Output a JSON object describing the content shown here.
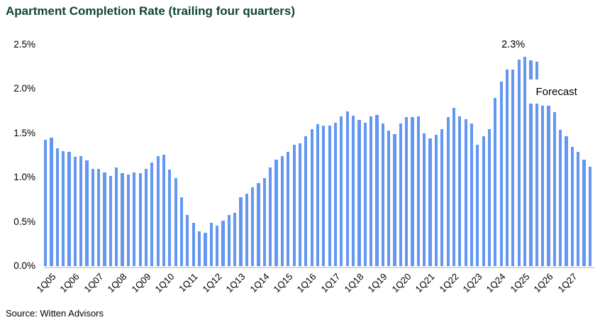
{
  "title": "Apartment Completion Rate (trailing four quarters)",
  "source": "Source: Witten Advisors",
  "colors": {
    "bar": "#6397F2",
    "title": "#0D4437",
    "axis_line": "#D9D9D9",
    "text": "#000000",
    "background": "#FFFFFF"
  },
  "annotations": {
    "peak": {
      "text": "2.3%",
      "bar_index": 80
    },
    "forecast": {
      "text": "Forecast",
      "bar_index": 83
    }
  },
  "chart_data": {
    "type": "bar",
    "title": "Apartment Completion Rate (trailing four quarters)",
    "xlabel": "",
    "ylabel": "",
    "unit": "%",
    "ylim": [
      0,
      2.5
    ],
    "grid": false,
    "legend": false,
    "y_ticks": [
      "0.0%",
      "0.5%",
      "1.0%",
      "1.5%",
      "2.0%",
      "2.5%"
    ],
    "x_tick_labels": [
      "1Q05",
      "1Q06",
      "1Q07",
      "1Q08",
      "1Q09",
      "1Q10",
      "1Q11",
      "1Q12",
      "1Q13",
      "1Q14",
      "1Q15",
      "1Q16",
      "1Q17",
      "1Q18",
      "1Q19",
      "1Q20",
      "1Q21",
      "1Q22",
      "1Q23",
      "1Q24",
      "1Q25",
      "1Q26",
      "1Q27"
    ],
    "x_tick_every": 4,
    "categories": [
      "1Q05",
      "2Q05",
      "3Q05",
      "4Q05",
      "1Q06",
      "2Q06",
      "3Q06",
      "4Q06",
      "1Q07",
      "2Q07",
      "3Q07",
      "4Q07",
      "1Q08",
      "2Q08",
      "3Q08",
      "4Q08",
      "1Q09",
      "2Q09",
      "3Q09",
      "4Q09",
      "1Q10",
      "2Q10",
      "3Q10",
      "4Q10",
      "1Q11",
      "2Q11",
      "3Q11",
      "4Q11",
      "1Q12",
      "2Q12",
      "3Q12",
      "4Q12",
      "1Q13",
      "2Q13",
      "3Q13",
      "4Q13",
      "1Q14",
      "2Q14",
      "3Q14",
      "4Q14",
      "1Q15",
      "2Q15",
      "3Q15",
      "4Q15",
      "1Q16",
      "2Q16",
      "3Q16",
      "4Q16",
      "1Q17",
      "2Q17",
      "3Q17",
      "4Q17",
      "1Q18",
      "2Q18",
      "3Q18",
      "4Q18",
      "1Q19",
      "2Q19",
      "3Q19",
      "4Q19",
      "1Q20",
      "2Q20",
      "3Q20",
      "4Q20",
      "1Q21",
      "2Q21",
      "3Q21",
      "4Q21",
      "1Q22",
      "2Q22",
      "3Q22",
      "4Q22",
      "1Q23",
      "2Q23",
      "3Q23",
      "4Q23",
      "1Q24",
      "2Q24",
      "3Q24",
      "4Q24",
      "1Q25",
      "2Q25",
      "3Q25",
      "4Q25",
      "1Q26",
      "2Q26",
      "3Q26",
      "4Q26",
      "1Q27",
      "2Q27",
      "3Q27",
      "4Q27",
      "1Q28"
    ],
    "values": [
      1.43,
      1.45,
      1.33,
      1.3,
      1.29,
      1.23,
      1.24,
      1.19,
      1.1,
      1.1,
      1.06,
      1.02,
      1.11,
      1.05,
      1.03,
      1.06,
      1.05,
      1.1,
      1.17,
      1.24,
      1.26,
      1.09,
      0.99,
      0.78,
      0.58,
      0.49,
      0.39,
      0.38,
      0.49,
      0.46,
      0.51,
      0.58,
      0.6,
      0.78,
      0.82,
      0.89,
      0.94,
      0.99,
      1.11,
      1.2,
      1.24,
      1.29,
      1.37,
      1.39,
      1.47,
      1.55,
      1.6,
      1.59,
      1.59,
      1.62,
      1.69,
      1.75,
      1.7,
      1.65,
      1.62,
      1.69,
      1.71,
      1.61,
      1.53,
      1.49,
      1.61,
      1.68,
      1.68,
      1.69,
      1.5,
      1.44,
      1.48,
      1.55,
      1.68,
      1.79,
      1.69,
      1.66,
      1.61,
      1.37,
      1.47,
      1.55,
      1.9,
      2.08,
      2.22,
      2.22,
      2.33,
      2.36,
      2.32,
      2.31,
      1.81,
      1.81,
      1.74,
      1.54,
      1.47,
      1.35,
      1.29,
      1.2,
      1.12
    ],
    "peak_annotation": "2.3%",
    "forecast_annotation": "Forecast"
  }
}
